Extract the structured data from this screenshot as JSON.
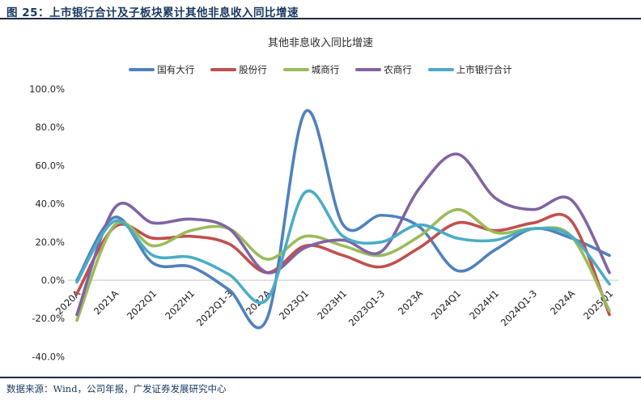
{
  "header": {
    "title": "图 25：上市银行合计及子板块累计其他非息收入同比增速"
  },
  "footer": {
    "source": "数据来源：Wind，公司年报，广发证券发展研究中心"
  },
  "chart_data": {
    "type": "line",
    "title": "其他非息收入同比增速",
    "categories": [
      "2020A",
      "2021A",
      "2022Q1",
      "2022H1",
      "2022Q1-3",
      "2022A",
      "2023Q1",
      "2023H1",
      "2023Q1-3",
      "2023A",
      "2024Q1",
      "2024H1",
      "2024Q1-3",
      "2024A",
      "2025Q1"
    ],
    "series": [
      {
        "name": "国有大行",
        "color": "#4F81BD",
        "values": [
          0,
          33,
          9,
          7,
          -5,
          -20,
          88,
          29,
          34,
          28,
          5,
          16,
          27,
          22,
          13
        ]
      },
      {
        "name": "股份行",
        "color": "#C0504D",
        "values": [
          -7,
          28,
          22,
          23,
          19,
          4,
          18,
          13,
          7,
          17,
          30,
          26,
          30,
          31,
          -18
        ]
      },
      {
        "name": "城商行",
        "color": "#9BBB59",
        "values": [
          -21,
          29,
          18,
          26,
          27,
          11,
          23,
          18,
          13,
          23,
          37,
          25,
          27,
          23,
          -16
        ]
      },
      {
        "name": "农商行",
        "color": "#8064A2",
        "values": [
          -18,
          38,
          30,
          32,
          27,
          4,
          17,
          21,
          15,
          48,
          66,
          43,
          37,
          42,
          4
        ]
      },
      {
        "name": "上市银行合计",
        "color": "#4BACC6",
        "values": [
          -1,
          31,
          13,
          12,
          3,
          -10,
          46,
          23,
          20,
          29,
          22,
          21,
          27,
          23,
          -2
        ]
      }
    ],
    "ylabel": "",
    "xlabel": "",
    "ylim": [
      -40,
      100
    ],
    "ytick_step": 20,
    "ytick_format": "percent_one_decimal",
    "grid": "zero-line-only",
    "legend_position": "top",
    "line_style": "smooth"
  },
  "style": {
    "accent_navy": "#17375E",
    "zero_line_color": "#D9D9D9",
    "axis_text_color": "#262626"
  }
}
